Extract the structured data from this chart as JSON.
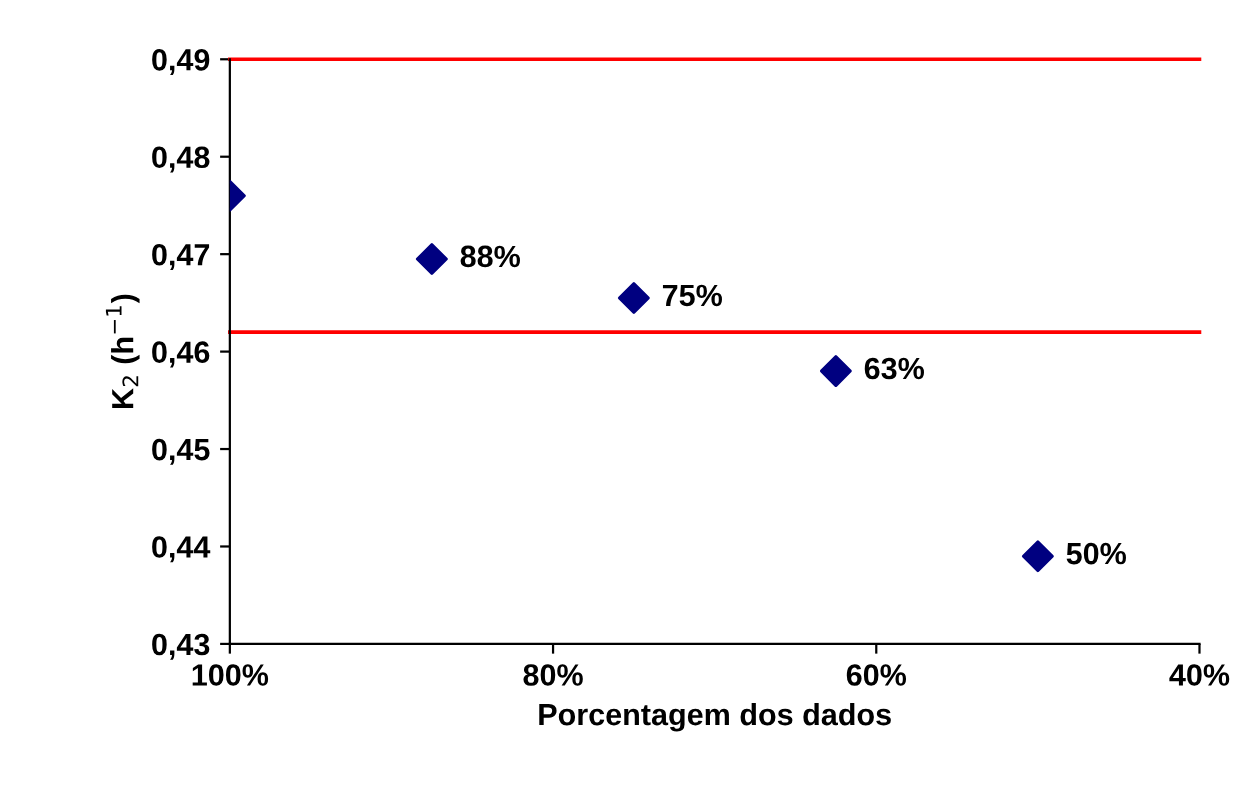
{
  "chart_data": {
    "type": "scatter",
    "xlabel": "Porcentagem dos dados",
    "ylabel": "K$_{2}$ (h$^{−1}$)",
    "x": [
      100,
      87.5,
      75,
      62.5,
      50
    ],
    "series": [
      {
        "color": "#000080",
        "marker": "diamond",
        "values": [
          0.476,
          0.4695,
          0.4655,
          0.458,
          0.439
        ]
      }
    ],
    "ref_lines": [
      {
        "axis": "y",
        "value": 0.49,
        "color": "#ff0000",
        "line_style": "solid"
      },
      {
        "axis": "y",
        "value": 0.462,
        "color": "#ff0000",
        "line_style": "solid"
      }
    ],
    "annotations": [
      {
        "text": "88%",
        "x": 87.5,
        "y": 0.4695
      },
      {
        "text": "75%",
        "x": 75,
        "y": 0.4655
      },
      {
        "text": "63%",
        "x": 62.5,
        "y": 0.458
      },
      {
        "text": "50%",
        "x": 50,
        "y": 0.439
      }
    ],
    "xlim": [
      100,
      40
    ],
    "ylim": [
      0.43,
      0.49
    ],
    "xticks": [
      {
        "value": 100,
        "label": "100%"
      },
      {
        "value": 80,
        "label": "80%"
      },
      {
        "value": 60,
        "label": "60%"
      },
      {
        "value": 40,
        "label": "40%"
      }
    ],
    "yticks": [
      {
        "value": 0.43,
        "label": "0,43"
      },
      {
        "value": 0.44,
        "label": "0,44"
      },
      {
        "value": 0.45,
        "label": "0,45"
      },
      {
        "value": 0.46,
        "label": "0,46"
      },
      {
        "value": 0.47,
        "label": "0,47"
      },
      {
        "value": 0.48,
        "label": "0,48"
      },
      {
        "value": 0.49,
        "label": "0,49"
      }
    ],
    "grid": false,
    "legend": false
  }
}
